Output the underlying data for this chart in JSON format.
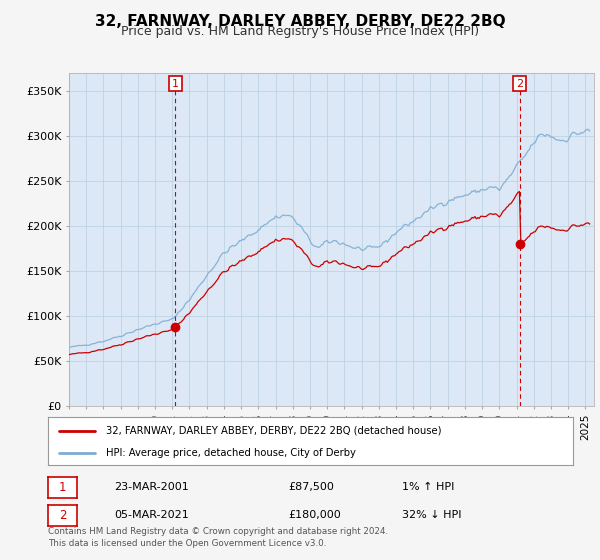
{
  "title": "32, FARNWAY, DARLEY ABBEY, DERBY, DE22 2BQ",
  "subtitle": "Price paid vs. HM Land Registry's House Price Index (HPI)",
  "ylabel_ticks": [
    "£0",
    "£50K",
    "£100K",
    "£150K",
    "£200K",
    "£250K",
    "£300K",
    "£350K"
  ],
  "ytick_values": [
    0,
    50000,
    100000,
    150000,
    200000,
    250000,
    300000,
    350000
  ],
  "ylim": [
    0,
    370000
  ],
  "xlim_start": 1995.0,
  "xlim_end": 2025.5,
  "hpi_color": "#7dadd4",
  "price_color": "#cc0000",
  "marker1_x": 2001.18,
  "marker1_y": 87500,
  "marker2_x": 2021.18,
  "marker2_y": 180000,
  "legend_label1": "32, FARNWAY, DARLEY ABBEY, DERBY, DE22 2BQ (detached house)",
  "legend_label2": "HPI: Average price, detached house, City of Derby",
  "table_row1": [
    "1",
    "23-MAR-2001",
    "£87,500",
    "1% ↑ HPI"
  ],
  "table_row2": [
    "2",
    "05-MAR-2021",
    "£180,000",
    "32% ↓ HPI"
  ],
  "footnote": "Contains HM Land Registry data © Crown copyright and database right 2024.\nThis data is licensed under the Open Government Licence v3.0.",
  "background_color": "#f5f5f5",
  "plot_bg_color": "#dce8f5",
  "grid_color": "#b8cfe0",
  "title_fontsize": 11,
  "subtitle_fontsize": 9,
  "tick_fontsize": 8
}
